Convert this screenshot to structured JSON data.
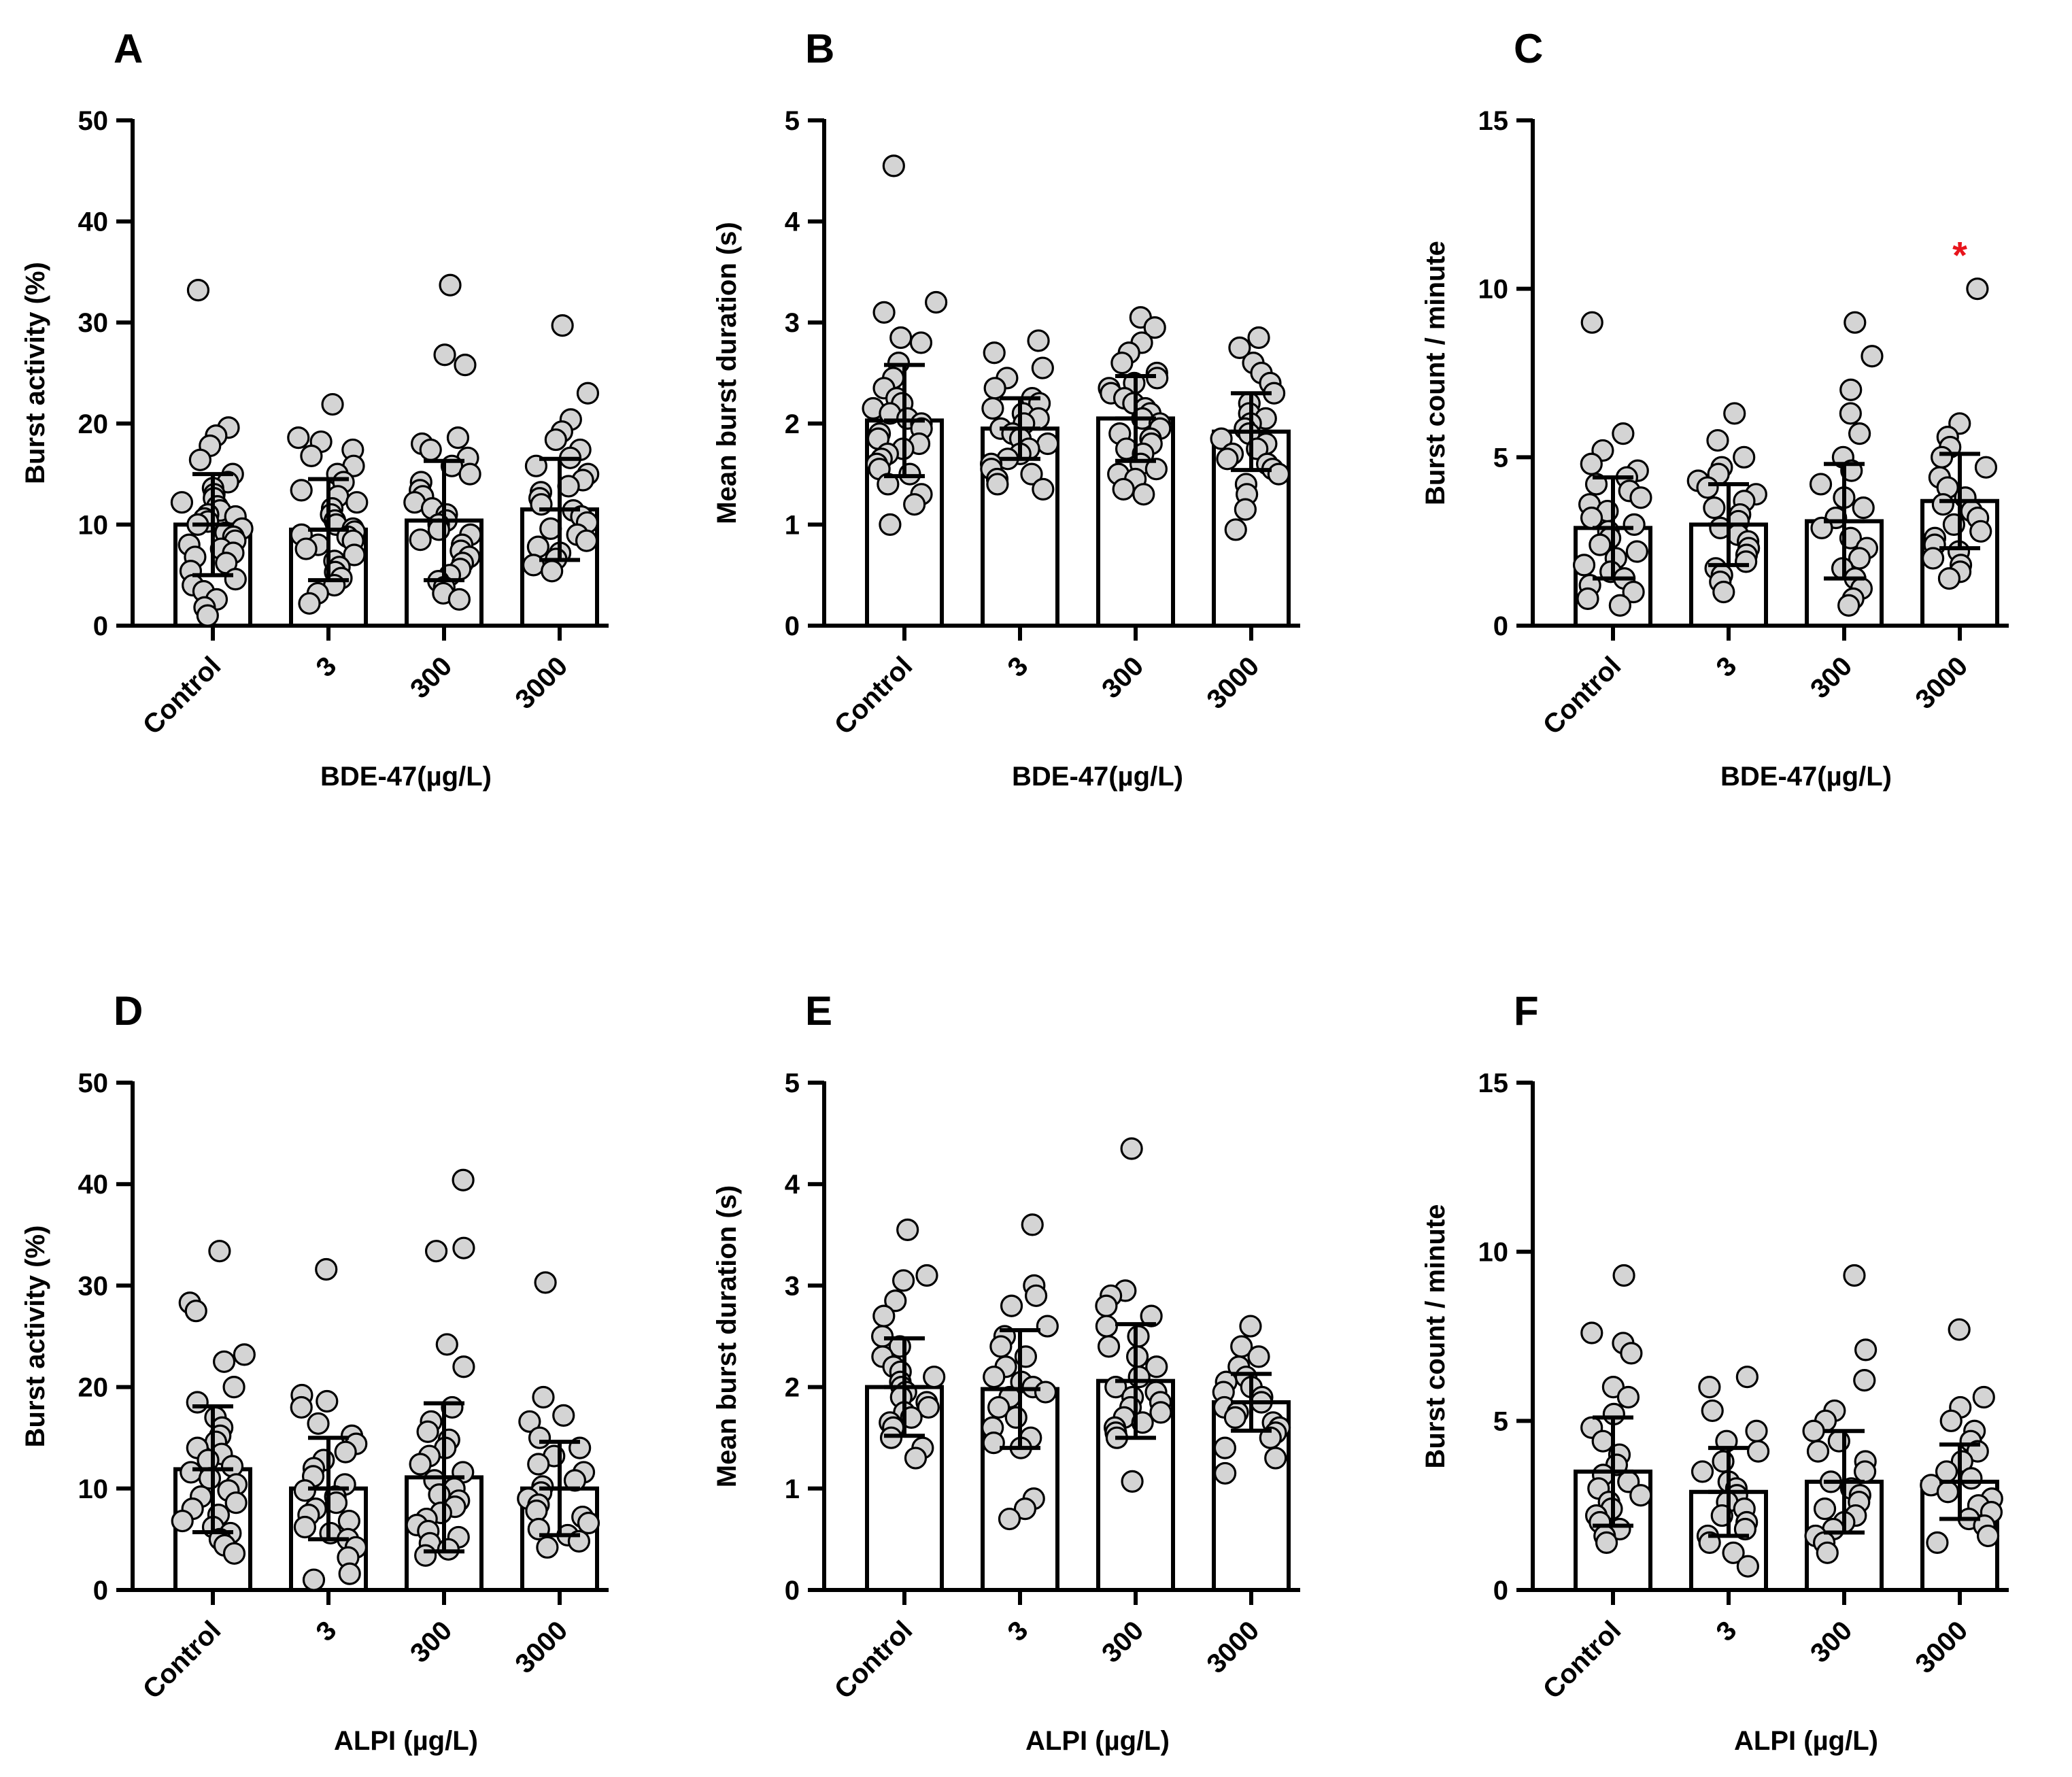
{
  "colors": {
    "bar_fill": "#ffffff",
    "stroke": "#000000",
    "dot_fill": "#d4d4d4",
    "significance": "#e8141c"
  },
  "chart_data": [
    {
      "panel": "A",
      "type": "bar",
      "ylabel": "Burst activity (%)",
      "xlabel": "BDE-47(µg/L)",
      "ylim": [
        0,
        50
      ],
      "yticks": [
        0,
        10,
        20,
        30,
        40,
        50
      ],
      "categories": [
        "Control",
        "3",
        "300",
        "3000"
      ],
      "means": [
        10.0,
        9.5,
        10.4,
        11.5
      ],
      "sd": [
        5.0,
        5.0,
        5.9,
        5.0
      ],
      "points": [
        [
          33.2,
          19.6,
          18.8,
          17.8,
          16.4,
          15.0,
          14.2,
          13.6,
          13.0,
          12.6,
          12.2,
          11.8,
          11.4,
          11.0,
          10.8,
          10.6,
          10.3,
          10.0,
          9.6,
          9.2,
          8.8,
          8.4,
          8.0,
          7.6,
          7.2,
          6.8,
          6.2,
          5.4,
          4.6,
          4.0,
          3.4,
          2.6,
          1.8,
          1.0
        ],
        [
          21.9,
          18.6,
          18.2,
          17.4,
          16.8,
          15.8,
          15.0,
          14.2,
          13.4,
          12.8,
          12.2,
          11.6,
          11.0,
          10.4,
          10.0,
          9.6,
          9.3,
          9.0,
          8.8,
          8.4,
          8.0,
          7.6,
          7.0,
          6.4,
          5.8,
          5.3,
          4.7,
          4.0,
          3.2,
          2.2
        ],
        [
          33.7,
          26.8,
          25.8,
          18.6,
          18.0,
          17.4,
          16.6,
          15.8,
          15.0,
          14.2,
          13.4,
          12.8,
          12.2,
          11.6,
          11.0,
          10.4,
          10.0,
          9.5,
          9.0,
          8.5,
          8.0,
          7.4,
          6.8,
          6.2,
          5.6,
          5.0,
          4.4,
          3.8,
          3.2,
          2.6
        ],
        [
          29.7,
          23.0,
          20.4,
          19.2,
          18.4,
          17.4,
          16.6,
          15.8,
          15.0,
          14.4,
          13.8,
          13.2,
          12.6,
          12.0,
          11.4,
          10.8,
          10.2,
          9.6,
          9.0,
          8.4,
          7.8,
          7.2,
          6.6,
          6.0,
          5.4
        ]
      ]
    },
    {
      "panel": "B",
      "type": "bar",
      "ylabel": "Mean burst duration (s)",
      "xlabel": "BDE-47(µg/L)",
      "ylim": [
        0,
        5
      ],
      "yticks": [
        0,
        1,
        2,
        3,
        4,
        5
      ],
      "categories": [
        "Control",
        "3",
        "300",
        "3000"
      ],
      "means": [
        2.03,
        1.95,
        2.05,
        1.92
      ],
      "sd": [
        0.55,
        0.3,
        0.42,
        0.38
      ],
      "points": [
        [
          4.55,
          3.2,
          3.1,
          2.85,
          2.8,
          2.6,
          2.45,
          2.35,
          2.25,
          2.2,
          2.15,
          2.1,
          2.05,
          2.0,
          1.95,
          1.9,
          1.85,
          1.8,
          1.75,
          1.7,
          1.65,
          1.6,
          1.55,
          1.5,
          1.4,
          1.3,
          1.2,
          1.0
        ],
        [
          2.82,
          2.7,
          2.55,
          2.45,
          2.35,
          2.25,
          2.2,
          2.15,
          2.1,
          2.05,
          2.0,
          1.95,
          1.9,
          1.85,
          1.8,
          1.75,
          1.7,
          1.65,
          1.6,
          1.55,
          1.5,
          1.45,
          1.4,
          1.35
        ],
        [
          3.05,
          2.95,
          2.8,
          2.7,
          2.6,
          2.5,
          2.45,
          2.4,
          2.35,
          2.3,
          2.25,
          2.2,
          2.15,
          2.1,
          2.05,
          2.0,
          1.95,
          1.9,
          1.85,
          1.8,
          1.75,
          1.7,
          1.6,
          1.55,
          1.5,
          1.45,
          1.35,
          1.3
        ],
        [
          2.85,
          2.75,
          2.6,
          2.5,
          2.4,
          2.3,
          2.2,
          2.1,
          2.05,
          2.0,
          1.95,
          1.9,
          1.85,
          1.8,
          1.75,
          1.7,
          1.65,
          1.6,
          1.55,
          1.5,
          1.4,
          1.3,
          1.15,
          0.95
        ]
      ]
    },
    {
      "panel": "C",
      "type": "bar",
      "ylabel": "Burst count / minute",
      "xlabel": "BDE-47(µg/L)",
      "ylim": [
        0,
        15
      ],
      "yticks": [
        0,
        5,
        10,
        15
      ],
      "categories": [
        "Control",
        "3",
        "300",
        "3000"
      ],
      "means": [
        2.9,
        3.0,
        3.1,
        3.7
      ],
      "sd": [
        1.5,
        1.2,
        1.7,
        1.4
      ],
      "significance": [
        "",
        "",
        "",
        "*"
      ],
      "points": [
        [
          9.0,
          5.7,
          5.2,
          4.8,
          4.6,
          4.4,
          4.2,
          4.0,
          3.8,
          3.6,
          3.4,
          3.2,
          3.0,
          2.8,
          2.6,
          2.4,
          2.2,
          2.0,
          1.8,
          1.6,
          1.4,
          1.2,
          1.0,
          0.8,
          0.6
        ],
        [
          6.3,
          5.5,
          5.0,
          4.7,
          4.5,
          4.3,
          4.1,
          3.9,
          3.7,
          3.5,
          3.3,
          3.1,
          2.9,
          2.7,
          2.5,
          2.3,
          2.1,
          1.9,
          1.7,
          1.5,
          1.3,
          1.0
        ],
        [
          9.0,
          8.0,
          7.0,
          6.3,
          5.7,
          5.0,
          4.6,
          4.2,
          3.8,
          3.5,
          3.2,
          2.9,
          2.6,
          2.3,
          2.0,
          1.7,
          1.4,
          1.1,
          0.8,
          0.6
        ],
        [
          10.0,
          6.0,
          5.6,
          5.3,
          5.0,
          4.7,
          4.4,
          4.1,
          3.8,
          3.6,
          3.4,
          3.2,
          3.0,
          2.8,
          2.6,
          2.4,
          2.2,
          2.0,
          1.8,
          1.6,
          1.4
        ]
      ]
    },
    {
      "panel": "D",
      "type": "bar",
      "ylabel": "Burst activity (%)",
      "xlabel": "ALPI (µg/L)",
      "ylim": [
        0,
        50
      ],
      "yticks": [
        0,
        10,
        20,
        30,
        40,
        50
      ],
      "categories": [
        "Control",
        "3",
        "300",
        "3000"
      ],
      "means": [
        11.9,
        10.0,
        11.1,
        10.0
      ],
      "sd": [
        6.2,
        5.0,
        7.3,
        4.6
      ],
      "points": [
        [
          33.4,
          28.3,
          27.5,
          23.2,
          22.5,
          20.0,
          18.5,
          17.0,
          16.0,
          15.2,
          14.6,
          14.0,
          13.4,
          12.8,
          12.2,
          11.6,
          11.0,
          10.4,
          9.8,
          9.2,
          8.6,
          8.0,
          7.4,
          6.8,
          6.2,
          5.6,
          5.0,
          4.4,
          3.6
        ],
        [
          31.6,
          19.2,
          18.6,
          18.0,
          16.4,
          15.2,
          14.4,
          13.6,
          12.8,
          12.0,
          11.2,
          10.4,
          9.8,
          9.2,
          8.6,
          8.0,
          7.4,
          6.8,
          6.2,
          5.6,
          5.0,
          4.2,
          3.2,
          1.6,
          1.0
        ],
        [
          40.4,
          33.7,
          33.4,
          24.2,
          22.0,
          18.0,
          16.6,
          15.6,
          14.8,
          14.0,
          13.2,
          12.4,
          11.6,
          10.8,
          10.0,
          9.4,
          8.8,
          8.2,
          7.6,
          7.0,
          6.4,
          5.8,
          5.2,
          4.6,
          4.0,
          3.4
        ],
        [
          30.3,
          19.0,
          17.2,
          16.6,
          15.0,
          14.0,
          13.2,
          12.4,
          11.6,
          10.8,
          10.2,
          9.6,
          9.0,
          8.4,
          7.8,
          7.2,
          6.6,
          6.0,
          5.4,
          4.8,
          4.2
        ]
      ]
    },
    {
      "panel": "E",
      "type": "bar",
      "ylabel": "Mean burst duration (s)",
      "xlabel": "ALPI (µg/L)",
      "ylim": [
        0,
        5
      ],
      "yticks": [
        0,
        1,
        2,
        3,
        4,
        5
      ],
      "categories": [
        "Control",
        "3",
        "300",
        "3000"
      ],
      "means": [
        2.0,
        1.98,
        2.06,
        1.85
      ],
      "sd": [
        0.48,
        0.58,
        0.56,
        0.28
      ],
      "points": [
        [
          3.55,
          3.1,
          3.05,
          2.85,
          2.7,
          2.5,
          2.4,
          2.3,
          2.2,
          2.15,
          2.1,
          2.05,
          2.0,
          1.95,
          1.9,
          1.85,
          1.8,
          1.75,
          1.7,
          1.65,
          1.6,
          1.5,
          1.4,
          1.3
        ],
        [
          3.6,
          3.0,
          2.9,
          2.8,
          2.6,
          2.5,
          2.4,
          2.3,
          2.2,
          2.1,
          2.05,
          2.0,
          1.95,
          1.9,
          1.8,
          1.7,
          1.6,
          1.5,
          1.45,
          1.4,
          0.9,
          0.8,
          0.7
        ],
        [
          4.35,
          2.95,
          2.9,
          2.8,
          2.7,
          2.6,
          2.5,
          2.4,
          2.3,
          2.2,
          2.1,
          2.0,
          1.95,
          1.9,
          1.85,
          1.8,
          1.75,
          1.7,
          1.65,
          1.6,
          1.55,
          1.5,
          1.07
        ],
        [
          2.6,
          2.4,
          2.3,
          2.2,
          2.1,
          2.05,
          2.0,
          1.95,
          1.9,
          1.85,
          1.8,
          1.75,
          1.7,
          1.65,
          1.6,
          1.55,
          1.5,
          1.4,
          1.3,
          1.15
        ]
      ]
    },
    {
      "panel": "F",
      "type": "bar",
      "ylabel": "Burst count / minute",
      "xlabel": "ALPI (µg/L)",
      "ylim": [
        0,
        15
      ],
      "yticks": [
        0,
        5,
        10,
        15
      ],
      "categories": [
        "Control",
        "3",
        "300",
        "3000"
      ],
      "means": [
        3.5,
        2.9,
        3.2,
        3.2
      ],
      "sd": [
        1.6,
        1.3,
        1.5,
        1.1
      ],
      "points": [
        [
          9.3,
          7.6,
          7.3,
          7.0,
          6.0,
          5.7,
          5.2,
          4.8,
          4.4,
          4.0,
          3.7,
          3.4,
          3.2,
          3.0,
          2.8,
          2.6,
          2.4,
          2.2,
          2.0,
          1.8,
          1.6,
          1.4
        ],
        [
          6.3,
          6.0,
          5.3,
          4.7,
          4.4,
          4.1,
          3.8,
          3.5,
          3.2,
          3.0,
          2.8,
          2.6,
          2.4,
          2.2,
          2.0,
          1.8,
          1.6,
          1.4,
          1.1,
          0.7
        ],
        [
          9.3,
          7.1,
          6.2,
          5.3,
          5.0,
          4.7,
          4.4,
          4.1,
          3.8,
          3.5,
          3.2,
          3.0,
          2.8,
          2.6,
          2.4,
          2.2,
          2.0,
          1.8,
          1.6,
          1.4,
          1.1
        ],
        [
          7.7,
          5.7,
          5.4,
          5.0,
          4.7,
          4.4,
          4.1,
          3.8,
          3.5,
          3.3,
          3.1,
          2.9,
          2.7,
          2.5,
          2.3,
          2.1,
          1.9,
          1.6,
          1.4
        ]
      ]
    }
  ]
}
